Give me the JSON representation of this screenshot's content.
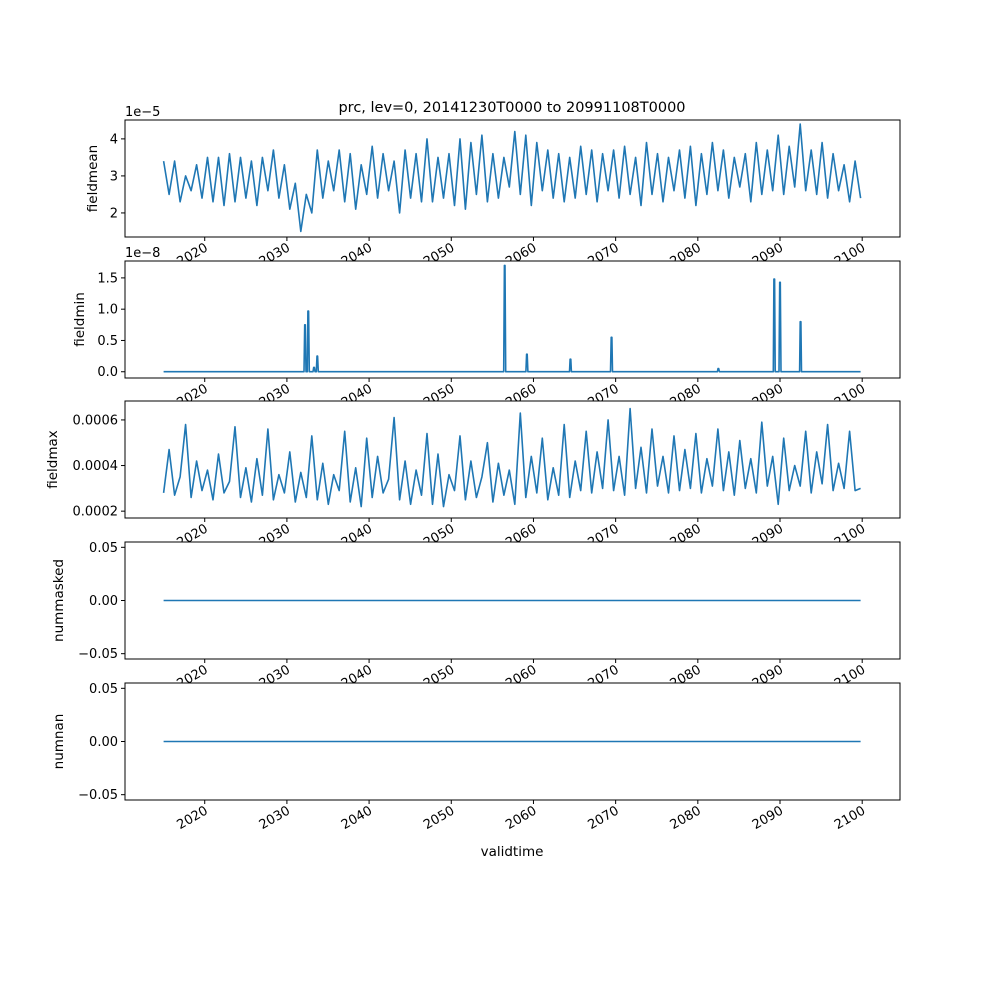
{
  "chart_data": {
    "type": "line",
    "title": "prc, lev=0, 20141230T0000 to 20991108T0000",
    "xlabel": "validtime",
    "xlim": [
      2010.3,
      2104.6
    ],
    "x_ticks": [
      "2020",
      "2030",
      "2040",
      "2050",
      "2060",
      "2070",
      "2080",
      "2090",
      "2100"
    ],
    "x_tick_values": [
      2020,
      2030,
      2040,
      2050,
      2060,
      2070,
      2080,
      2090,
      2100
    ],
    "color": "#1f77b4",
    "panels": [
      {
        "ylabel": "fieldmean",
        "offset_text": "1e−5",
        "scale": 1e-05,
        "ylim": [
          1.35,
          4.51
        ],
        "y_ticks": [
          "2",
          "3",
          "4"
        ],
        "y_tick_values": [
          2,
          3,
          4
        ],
        "x_range": [
          2015.0,
          2099.8
        ],
        "values": [
          3.4,
          2.5,
          3.4,
          2.3,
          3.0,
          2.6,
          3.3,
          2.4,
          3.5,
          2.3,
          3.5,
          2.2,
          3.6,
          2.3,
          3.5,
          2.4,
          3.4,
          2.2,
          3.5,
          2.6,
          3.7,
          2.4,
          3.3,
          2.1,
          2.8,
          1.5,
          2.5,
          2.0,
          3.7,
          2.4,
          3.4,
          2.6,
          3.7,
          2.3,
          3.6,
          2.1,
          3.3,
          2.5,
          3.8,
          2.4,
          3.6,
          2.6,
          3.4,
          2.0,
          3.7,
          2.4,
          3.6,
          2.3,
          4.0,
          2.3,
          3.5,
          2.4,
          3.6,
          2.2,
          4.0,
          2.1,
          3.9,
          2.5,
          4.1,
          2.3,
          3.6,
          2.4,
          3.5,
          2.7,
          4.2,
          2.5,
          4.1,
          2.2,
          3.9,
          2.6,
          3.7,
          2.4,
          3.6,
          2.3,
          3.5,
          2.4,
          3.8,
          2.5,
          3.7,
          2.3,
          3.6,
          2.6,
          3.7,
          2.4,
          3.8,
          2.5,
          3.5,
          2.2,
          3.9,
          2.5,
          3.6,
          2.3,
          3.5,
          2.6,
          3.7,
          2.4,
          3.8,
          2.2,
          3.6,
          2.5,
          3.9,
          2.6,
          3.7,
          2.4,
          3.5,
          2.7,
          3.6,
          2.3,
          3.9,
          2.5,
          3.7,
          2.6,
          4.1,
          2.5,
          3.8,
          2.7,
          4.4,
          2.6,
          3.7,
          2.5,
          3.9,
          2.4,
          3.6,
          2.6,
          3.3,
          2.3,
          3.4,
          2.4
        ]
      },
      {
        "ylabel": "fieldmin",
        "offset_text": "1e−8",
        "scale": 1e-08,
        "ylim": [
          -0.1,
          1.77
        ],
        "y_ticks": [
          "0.0",
          "0.5",
          "1.0",
          "1.5"
        ],
        "y_tick_values": [
          0,
          0.5,
          1.0,
          1.5
        ],
        "x_range": [
          2015.0,
          2099.8
        ],
        "baseline": 0,
        "spikes": [
          [
            2032.2,
            0.75
          ],
          [
            2032.6,
            0.97
          ],
          [
            2033.3,
            0.07
          ],
          [
            2033.7,
            0.25
          ],
          [
            2056.5,
            1.7
          ],
          [
            2059.2,
            0.28
          ],
          [
            2064.5,
            0.2
          ],
          [
            2069.5,
            0.55
          ],
          [
            2082.5,
            0.05
          ],
          [
            2089.3,
            1.48
          ],
          [
            2090.0,
            1.43
          ],
          [
            2092.5,
            0.8
          ]
        ]
      },
      {
        "ylabel": "fieldmax",
        "offset_text": "",
        "scale": 0.0001,
        "ylim": [
          1.7,
          6.83
        ],
        "y_ticks": [
          "0.0002",
          "0.0004",
          "0.0006"
        ],
        "y_tick_values": [
          2,
          4,
          6
        ],
        "x_range": [
          2015.0,
          2099.8
        ],
        "values": [
          2.8,
          4.7,
          2.7,
          3.5,
          5.8,
          2.6,
          4.2,
          2.9,
          3.8,
          2.5,
          4.5,
          2.8,
          3.3,
          5.7,
          2.6,
          3.9,
          2.4,
          4.3,
          2.7,
          5.6,
          2.5,
          3.6,
          2.8,
          4.6,
          2.4,
          3.7,
          2.6,
          5.3,
          2.5,
          4.1,
          2.3,
          3.6,
          2.9,
          5.5,
          2.4,
          3.9,
          2.2,
          5.2,
          2.6,
          4.4,
          2.8,
          3.4,
          6.1,
          2.5,
          4.2,
          2.3,
          3.8,
          2.7,
          5.4,
          2.3,
          4.5,
          2.2,
          3.6,
          2.9,
          5.3,
          2.5,
          4.2,
          2.6,
          3.5,
          5.0,
          2.4,
          4.1,
          2.7,
          3.8,
          2.3,
          6.3,
          2.6,
          4.4,
          2.8,
          5.2,
          2.5,
          3.9,
          2.7,
          5.8,
          2.6,
          4.2,
          2.9,
          5.5,
          2.8,
          4.6,
          3.0,
          6.0,
          2.9,
          4.4,
          2.7,
          6.5,
          3.0,
          4.8,
          2.8,
          5.6,
          3.1,
          4.4,
          2.8,
          5.3,
          2.9,
          4.7,
          3.0,
          5.4,
          2.8,
          4.3,
          3.1,
          5.6,
          2.9,
          4.6,
          2.7,
          5.1,
          3.0,
          4.3,
          2.8,
          5.9,
          3.1,
          4.4,
          2.3,
          5.2,
          2.9,
          4.0,
          3.1,
          5.5,
          2.8,
          4.6,
          3.2,
          5.8,
          2.9,
          4.1,
          3.0,
          5.5,
          2.9,
          3.0
        ]
      },
      {
        "ylabel": "nummasked",
        "offset_text": "",
        "scale": 1,
        "ylim": [
          -0.055,
          0.055
        ],
        "y_ticks": [
          "−0.05",
          "0.00",
          "0.05"
        ],
        "y_tick_values": [
          -0.05,
          0,
          0.05
        ],
        "x_range": [
          2015.0,
          2099.8
        ],
        "values": [
          0,
          0
        ]
      },
      {
        "ylabel": "numnan",
        "offset_text": "",
        "scale": 1,
        "ylim": [
          -0.055,
          0.055
        ],
        "y_ticks": [
          "−0.05",
          "0.00",
          "0.05"
        ],
        "y_tick_values": [
          -0.05,
          0,
          0.05
        ],
        "x_range": [
          2015.0,
          2099.8
        ],
        "values": [
          0,
          0
        ]
      }
    ]
  }
}
